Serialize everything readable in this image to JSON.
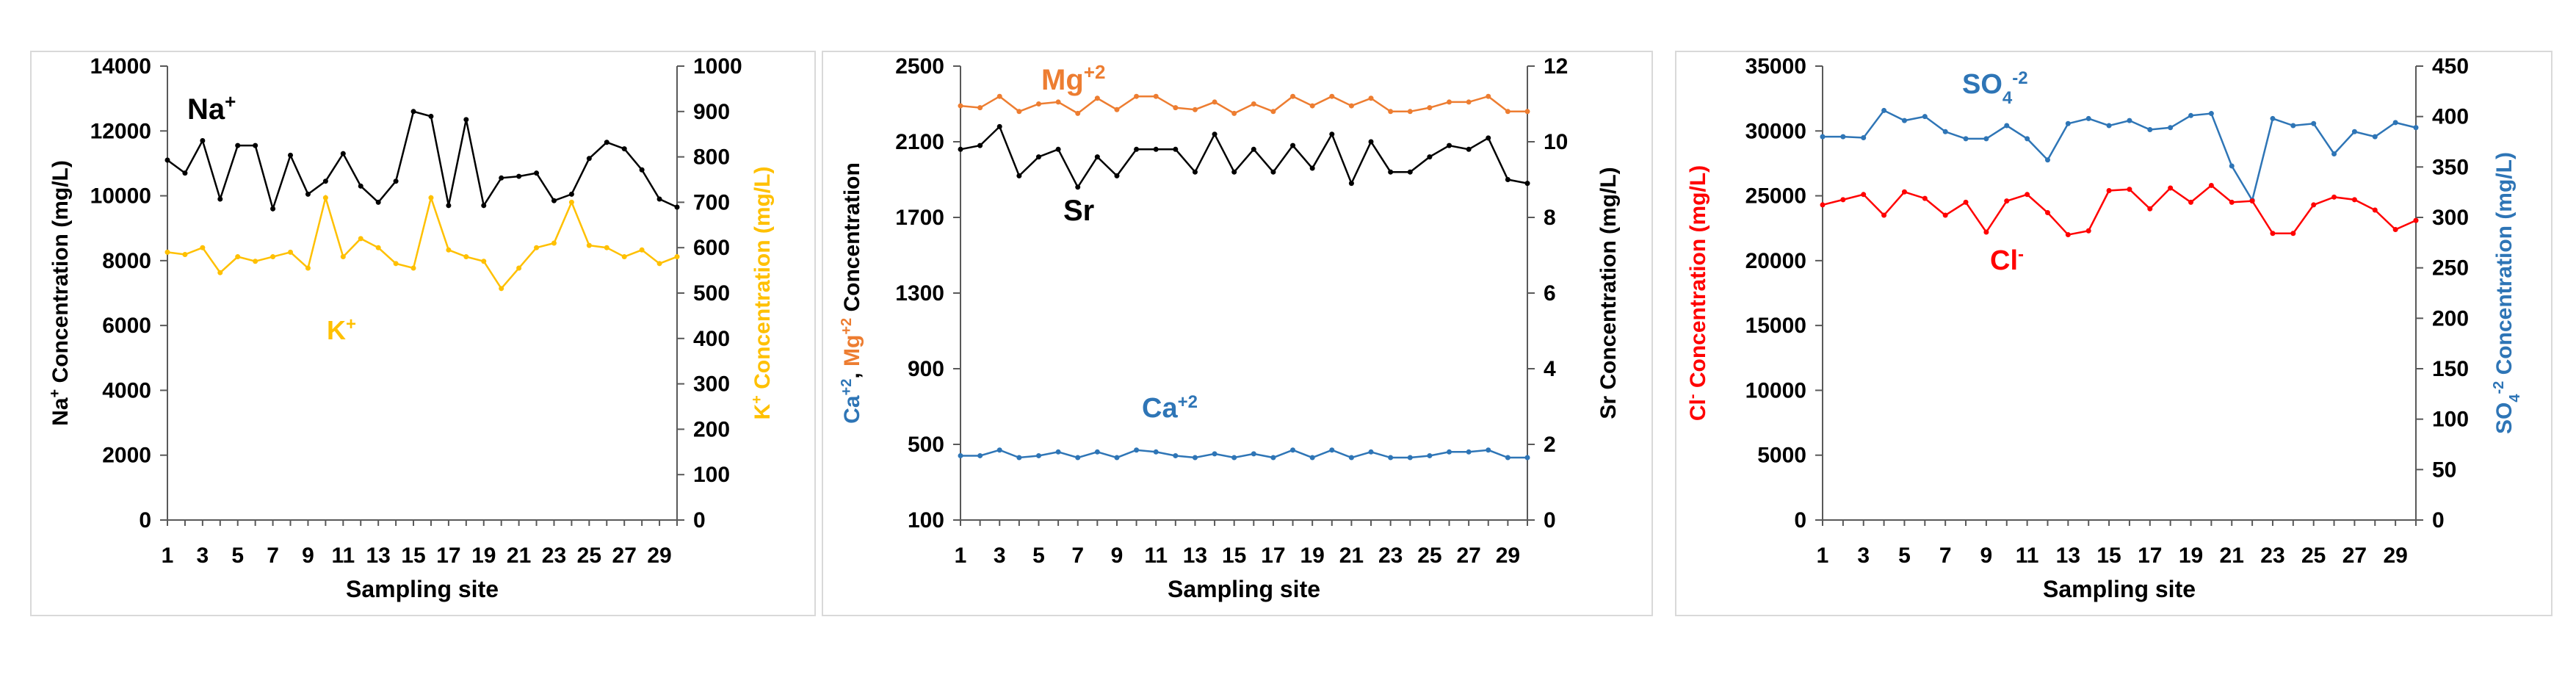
{
  "colors": {
    "black": "#000000",
    "gold": "#ffc000",
    "orange": "#ed7d31",
    "blue": "#2e75b6",
    "red": "#ff0000",
    "axis": "#595959"
  },
  "chart_data": [
    {
      "type": "line",
      "xlabel": "Sampling site",
      "xticks": [
        "1",
        "3",
        "5",
        "7",
        "9",
        "11",
        "13",
        "15",
        "17",
        "19",
        "21",
        "23",
        "25",
        "27",
        "29"
      ],
      "y_left": {
        "label_main": "Na",
        "label_sup": "+",
        "label_rest": " Concentration (mg/L)",
        "ticks": [
          "0",
          "2000",
          "4000",
          "6000",
          "8000",
          "10000",
          "12000",
          "14000"
        ],
        "ylim": [
          0,
          14000
        ]
      },
      "y_right": {
        "label_main": "K",
        "label_sup": "+",
        "label_rest": " Concentration (mg/L)",
        "ticks": [
          "0",
          "100",
          "200",
          "300",
          "400",
          "500",
          "600",
          "700",
          "800",
          "900",
          "1000"
        ],
        "ylim": [
          0,
          1000
        ]
      },
      "x": [
        1,
        2,
        3,
        4,
        5,
        6,
        7,
        8,
        9,
        10,
        11,
        12,
        13,
        14,
        15,
        16,
        17,
        18,
        19,
        20,
        21,
        22,
        23,
        24,
        25,
        26,
        27,
        28,
        29,
        30
      ],
      "series": [
        {
          "name_main": "Na",
          "name_sup": "+",
          "axis": "left",
          "color": "#000000",
          "values": [
            11100,
            10700,
            11700,
            9900,
            11550,
            11550,
            9600,
            11250,
            10050,
            10450,
            11300,
            10300,
            9800,
            10450,
            12600,
            12450,
            9700,
            12350,
            9700,
            10550,
            10600,
            10700,
            9850,
            10050,
            11150,
            11650,
            11450,
            10800,
            9900,
            9650
          ]
        },
        {
          "axis": "right",
          "color": "#ffc000",
          "label_main": "K",
          "label_sup": "+",
          "values": [
            590,
            585,
            600,
            545,
            580,
            570,
            580,
            590,
            555,
            710,
            580,
            620,
            600,
            565,
            555,
            710,
            595,
            580,
            570,
            510,
            555,
            600,
            610,
            700,
            605,
            600,
            580,
            595,
            565,
            580
          ]
        }
      ]
    },
    {
      "type": "line",
      "xlabel": "Sampling site",
      "xticks": [
        "1",
        "3",
        "5",
        "7",
        "9",
        "11",
        "13",
        "15",
        "17",
        "19",
        "21",
        "23",
        "25",
        "27",
        "29"
      ],
      "y_left": {
        "ca_main": "Ca",
        "ca_sup": "+2",
        "sep": ", ",
        "mg_main": "Mg",
        "mg_sup": "+2",
        "label_rest": " Concentration",
        "ticks": [
          "100",
          "500",
          "900",
          "1300",
          "1700",
          "2100",
          "2500"
        ],
        "ylim": [
          100,
          2500
        ]
      },
      "y_right": {
        "label": "Sr Concentration (mg/L)",
        "ticks": [
          "0",
          "2",
          "4",
          "6",
          "8",
          "10",
          "12"
        ],
        "ylim": [
          0,
          12
        ]
      },
      "x": [
        1,
        2,
        3,
        4,
        5,
        6,
        7,
        8,
        9,
        10,
        11,
        12,
        13,
        14,
        15,
        16,
        17,
        18,
        19,
        20,
        21,
        22,
        23,
        24,
        25,
        26,
        27,
        28,
        29,
        30
      ],
      "series": [
        {
          "name_main": "Mg",
          "name_sup": "+2",
          "axis": "left",
          "color": "#ed7d31",
          "values": [
            2290,
            2280,
            2340,
            2260,
            2300,
            2310,
            2250,
            2330,
            2270,
            2340,
            2340,
            2280,
            2270,
            2310,
            2250,
            2300,
            2260,
            2340,
            2290,
            2340,
            2290,
            2330,
            2260,
            2260,
            2280,
            2310,
            2310,
            2340,
            2260,
            2260
          ]
        },
        {
          "name_main": "Sr",
          "axis": "right",
          "color": "#000000",
          "values": [
            9.8,
            9.9,
            10.4,
            9.1,
            9.6,
            9.8,
            8.8,
            9.6,
            9.1,
            9.8,
            9.8,
            9.8,
            9.2,
            10.2,
            9.2,
            9.8,
            9.2,
            9.9,
            9.3,
            10.2,
            8.9,
            10.0,
            9.2,
            9.2,
            9.6,
            9.9,
            9.8,
            10.1,
            9.0,
            8.9
          ]
        },
        {
          "name_main": "Ca",
          "name_sup": "+2",
          "axis": "left",
          "color": "#2e75b6",
          "values": [
            440,
            440,
            470,
            430,
            440,
            460,
            430,
            460,
            430,
            470,
            460,
            440,
            430,
            450,
            430,
            450,
            430,
            470,
            430,
            470,
            430,
            460,
            430,
            430,
            440,
            460,
            460,
            470,
            430,
            430
          ]
        }
      ]
    },
    {
      "type": "line",
      "xlabel": "Sampling site",
      "xticks": [
        "1",
        "3",
        "5",
        "7",
        "9",
        "11",
        "13",
        "15",
        "17",
        "19",
        "21",
        "23",
        "25",
        "27",
        "29"
      ],
      "y_left": {
        "label_main": "Cl",
        "label_sup": "-",
        "label_rest": " Concentration (mg/L)",
        "ticks": [
          "0",
          "5000",
          "10000",
          "15000",
          "20000",
          "25000",
          "30000",
          "35000"
        ],
        "ylim": [
          0,
          35000
        ]
      },
      "y_right": {
        "label_main": "SO",
        "label_sub": "4",
        "label_sup": "-2",
        "label_rest": " Concentration (mg/L)",
        "ticks": [
          "0",
          "50",
          "100",
          "150",
          "200",
          "250",
          "300",
          "350",
          "400",
          "450"
        ],
        "ylim": [
          0,
          450
        ]
      },
      "x": [
        1,
        2,
        3,
        4,
        5,
        6,
        7,
        8,
        9,
        10,
        11,
        12,
        13,
        14,
        15,
        16,
        17,
        18,
        19,
        20,
        21,
        22,
        23,
        24,
        25,
        26,
        27,
        28,
        29,
        30
      ],
      "series": [
        {
          "name_main": "SO",
          "name_sub": "4",
          "name_sup": "-2",
          "axis": "right",
          "color": "#2e75b6",
          "values": [
            380,
            380,
            379,
            406,
            396,
            400,
            385,
            378,
            378,
            391,
            378,
            357,
            393,
            398,
            391,
            396,
            387,
            389,
            401,
            403,
            351,
            317,
            398,
            391,
            393,
            363,
            385,
            380,
            394,
            389
          ]
        },
        {
          "name_main": "Cl",
          "name_sup": "-",
          "axis": "left",
          "color": "#ff0000",
          "values": [
            24300,
            24700,
            25100,
            23500,
            25300,
            24800,
            23500,
            24500,
            22200,
            24600,
            25100,
            23700,
            22000,
            22300,
            25400,
            25500,
            24000,
            25600,
            24500,
            25800,
            24500,
            24600,
            22100,
            22100,
            24300,
            24900,
            24700,
            23900,
            22400,
            23100
          ]
        }
      ]
    }
  ]
}
